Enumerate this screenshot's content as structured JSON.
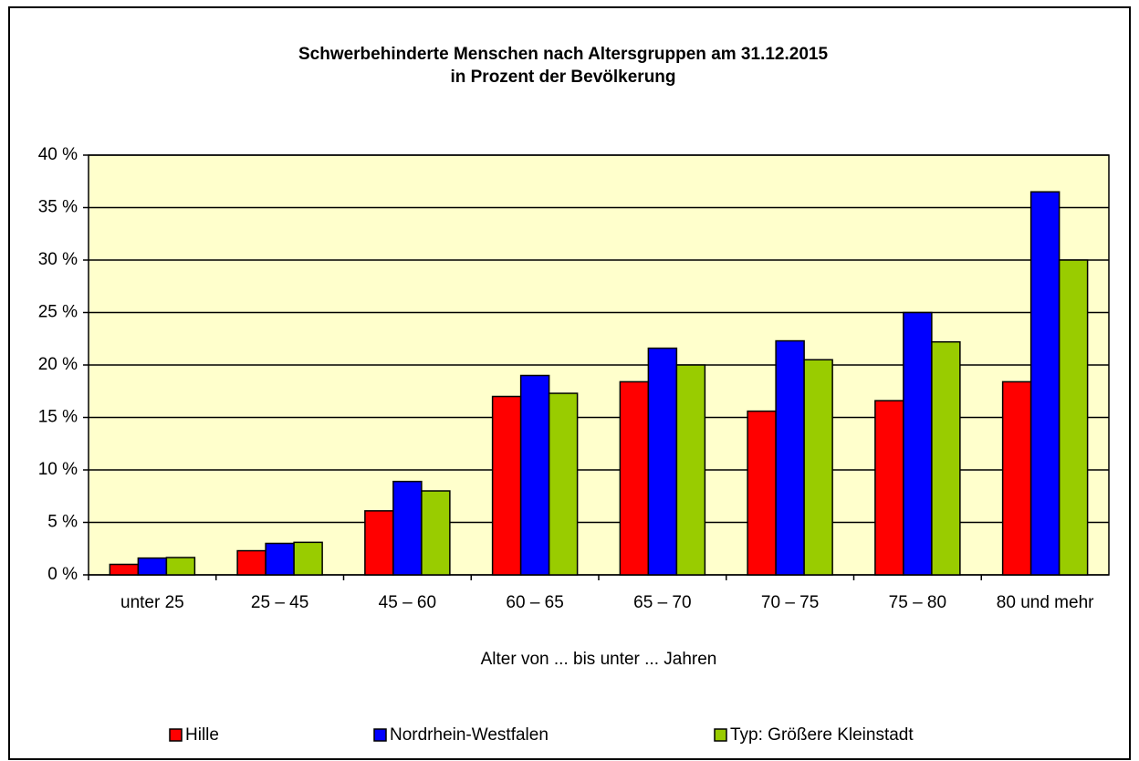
{
  "chart_data": {
    "type": "bar",
    "title": "Schwerbehinderte Menschen nach Altersgruppen am 31.12.2015",
    "subtitle": "in Prozent der Bevölkerung",
    "x_label": "Alter von ... bis unter ... Jahren",
    "categories": [
      "unter 25",
      "25 – 45",
      "45 – 60",
      "60 – 65",
      "65 – 70",
      "70 – 75",
      "75 – 80",
      "80 und mehr"
    ],
    "series": [
      {
        "name": "Hille",
        "color": "#ff0000",
        "values": [
          1.0,
          2.3,
          6.1,
          17.0,
          18.4,
          15.6,
          16.6,
          18.4
        ]
      },
      {
        "name": "Nordrhein-Westfalen",
        "color": "#0000ff",
        "values": [
          1.6,
          3.0,
          8.9,
          19.0,
          21.6,
          22.3,
          25.0,
          36.5
        ]
      },
      {
        "name": "Typ: Größere Kleinstadt",
        "color": "#99cc00",
        "values": [
          1.65,
          3.1,
          8.0,
          17.3,
          20.0,
          20.5,
          22.2,
          30.0
        ]
      }
    ],
    "ylim": [
      0,
      40
    ],
    "yticks": [
      {
        "value": 0,
        "label": "0 %"
      },
      {
        "value": 5,
        "label": "5 %"
      },
      {
        "value": 10,
        "label": "10 %"
      },
      {
        "value": 15,
        "label": "15 %"
      },
      {
        "value": 20,
        "label": "20 %"
      },
      {
        "value": 25,
        "label": "25 %"
      },
      {
        "value": 30,
        "label": "30 %"
      },
      {
        "value": 35,
        "label": "35 %"
      },
      {
        "value": 40,
        "label": "40 %"
      }
    ],
    "grid": true,
    "plot_background": "#ffffcc",
    "legend": "bottom"
  }
}
